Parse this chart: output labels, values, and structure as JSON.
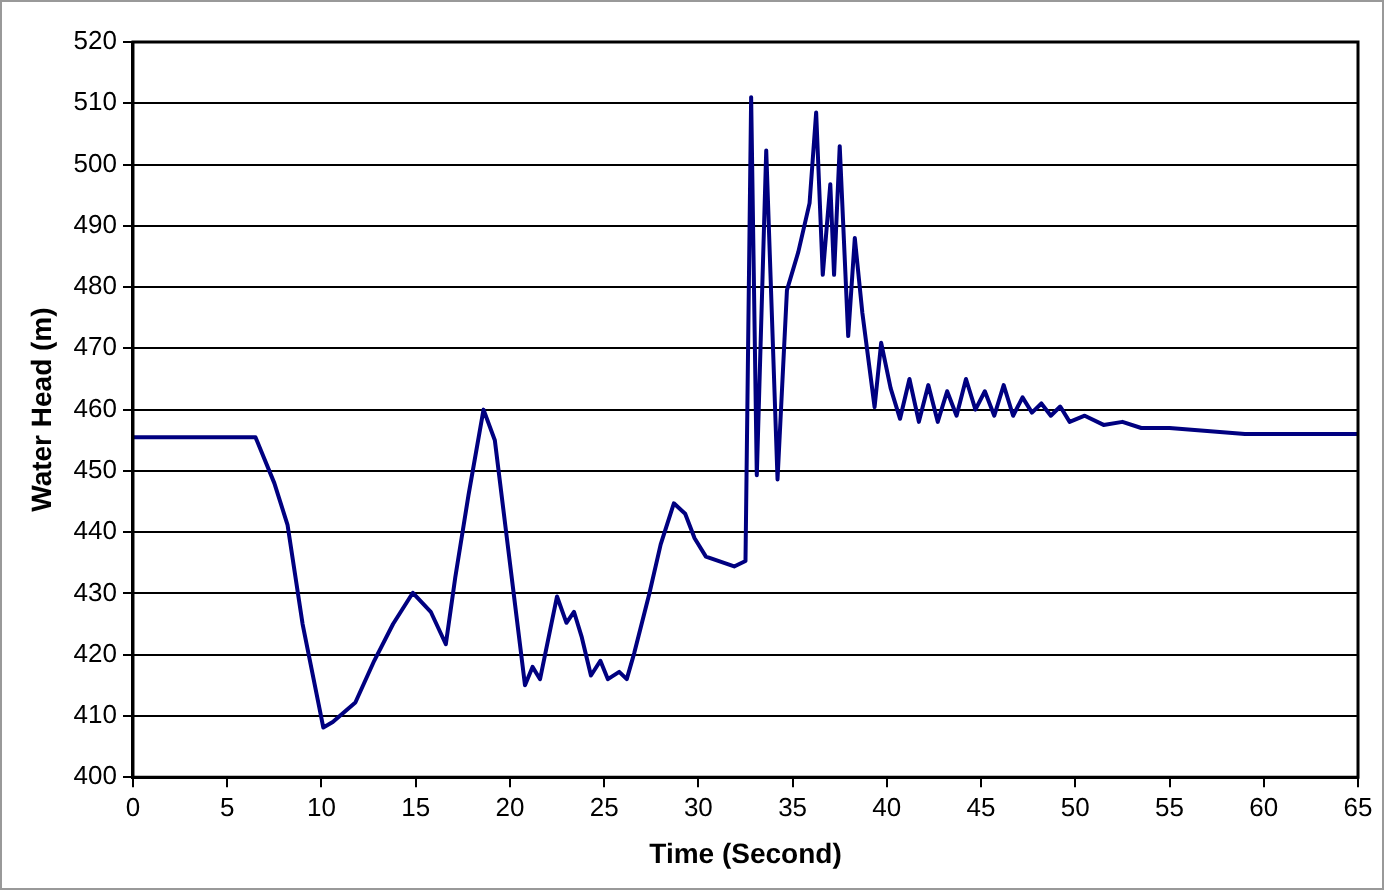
{
  "chart_data": {
    "type": "line",
    "xlabel": "Time (Second)",
    "ylabel": "Water Head (m)",
    "xlim": [
      0,
      65
    ],
    "xticks": [
      0,
      5,
      10,
      15,
      20,
      25,
      30,
      35,
      40,
      45,
      50,
      55,
      60,
      65
    ],
    "ylim": [
      400,
      520
    ],
    "yticks": [
      400,
      410,
      420,
      430,
      440,
      450,
      460,
      470,
      480,
      490,
      500,
      510,
      520
    ],
    "grid": "y",
    "legend": false,
    "marker": "none",
    "line_style": "solid",
    "series": [
      {
        "color": "#000080",
        "x": [
          0,
          6.5,
          7.5,
          8.2,
          9,
          10.1,
          10.6,
          11.8,
          12.8,
          13.8,
          14.85,
          15.8,
          16.6,
          17.1,
          17.8,
          18.6,
          19.2,
          20,
          20.8,
          21.2,
          21.6,
          22.5,
          23,
          23.4,
          23.8,
          24.3,
          24.8,
          25.2,
          25.8,
          26.2,
          26.6,
          27.4,
          28,
          28.7,
          29.3,
          29.8,
          30.4,
          31.9,
          32.5,
          32.8,
          33.1,
          33.6,
          34.2,
          34.7,
          35.3,
          35.9,
          36.25,
          36.6,
          37,
          37.2,
          37.5,
          37.95,
          38.3,
          38.7,
          39.35,
          39.7,
          40.2,
          40.7,
          41.2,
          41.7,
          42.2,
          42.7,
          43.2,
          43.7,
          44.2,
          44.7,
          45.2,
          45.7,
          46.2,
          46.7,
          47.2,
          47.7,
          48.2,
          48.7,
          49.2,
          49.7,
          50.5,
          51.5,
          52.5,
          53.5,
          55,
          57,
          59,
          61,
          63,
          65
        ],
        "values": [
          455.5,
          455.5,
          448,
          441.2,
          425,
          408.1,
          409,
          412.2,
          419,
          425,
          430.1,
          427,
          421.7,
          432.6,
          446,
          460,
          455,
          435,
          415,
          418,
          416,
          429.5,
          425.2,
          427,
          423,
          416.6,
          419,
          416,
          417.2,
          416,
          420.3,
          430,
          438,
          444.7,
          443,
          439,
          436,
          434.4,
          435.3,
          511,
          449.3,
          502.3,
          448.6,
          479.5,
          485.7,
          493.7,
          508.5,
          482,
          496.8,
          482,
          503,
          472,
          488,
          475.8,
          460.4,
          470.9,
          463.5,
          458.5,
          465,
          458,
          464,
          458,
          463,
          459,
          465,
          460,
          463,
          459,
          464,
          459,
          462,
          459.5,
          461,
          459,
          460.5,
          458,
          459,
          457.5,
          458,
          457,
          457,
          456.5,
          456,
          456,
          456,
          456
        ]
      }
    ]
  }
}
